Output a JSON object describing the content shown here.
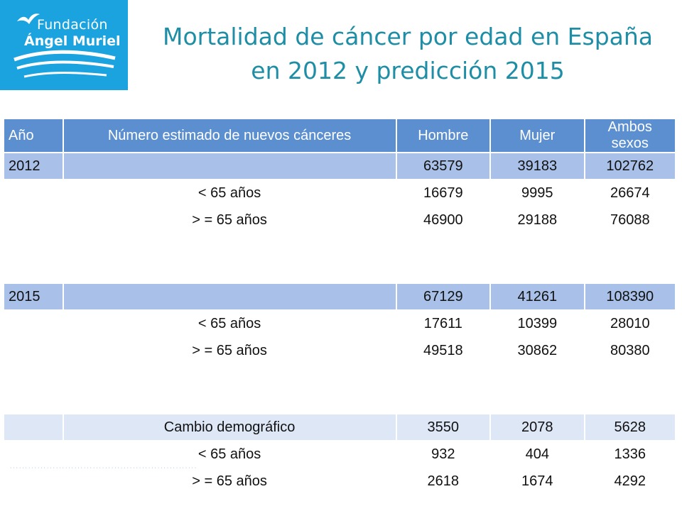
{
  "logo": {
    "line1": "Fundación",
    "line2": "Ángel Muriel"
  },
  "title": {
    "line1": "Mortalidad de cáncer por edad en  España",
    "line2": "en 2012 y predicción 2015"
  },
  "table": {
    "headers": [
      "Año",
      "Número estimado de nuevos cánceres",
      "Hombre",
      "Mujer",
      "Ambos sexos"
    ],
    "y2012": {
      "year": "2012",
      "hombre": "63579",
      "mujer": "39183",
      "ambos": "102762",
      "lt65": {
        "label": "< 65 años",
        "hombre": "16679",
        "mujer": "9995",
        "ambos": "26674"
      },
      "ge65": {
        "label": "> = 65 años",
        "hombre": "46900",
        "mujer": "29188",
        "ambos": "76088"
      }
    },
    "y2015": {
      "year": "2015",
      "hombre": "67129",
      "mujer": "41261",
      "ambos": "108390",
      "lt65": {
        "label": "< 65 años",
        "hombre": "17611",
        "mujer": "10399",
        "ambos": "28010"
      },
      "ge65": {
        "label": "> = 65 años",
        "hombre": "49518",
        "mujer": "30862",
        "ambos": "80380"
      }
    },
    "cambio": {
      "label": "Cambio demográfico",
      "hombre": "3550",
      "mujer": "2078",
      "ambos": "5628",
      "lt65": {
        "label": "< 65 años",
        "hombre": "932",
        "mujer": "404",
        "ambos": "1336"
      },
      "ge65": {
        "label": "> = 65 años",
        "hombre": "2618",
        "mujer": "1674",
        "ambos": "4292"
      }
    }
  },
  "colors": {
    "logo_bg": "#1ba3e0",
    "title": "#1d8ea6",
    "header": "#5b8fd0",
    "year_row": "#a9c1e8",
    "alt_row": "#dde7f6"
  }
}
